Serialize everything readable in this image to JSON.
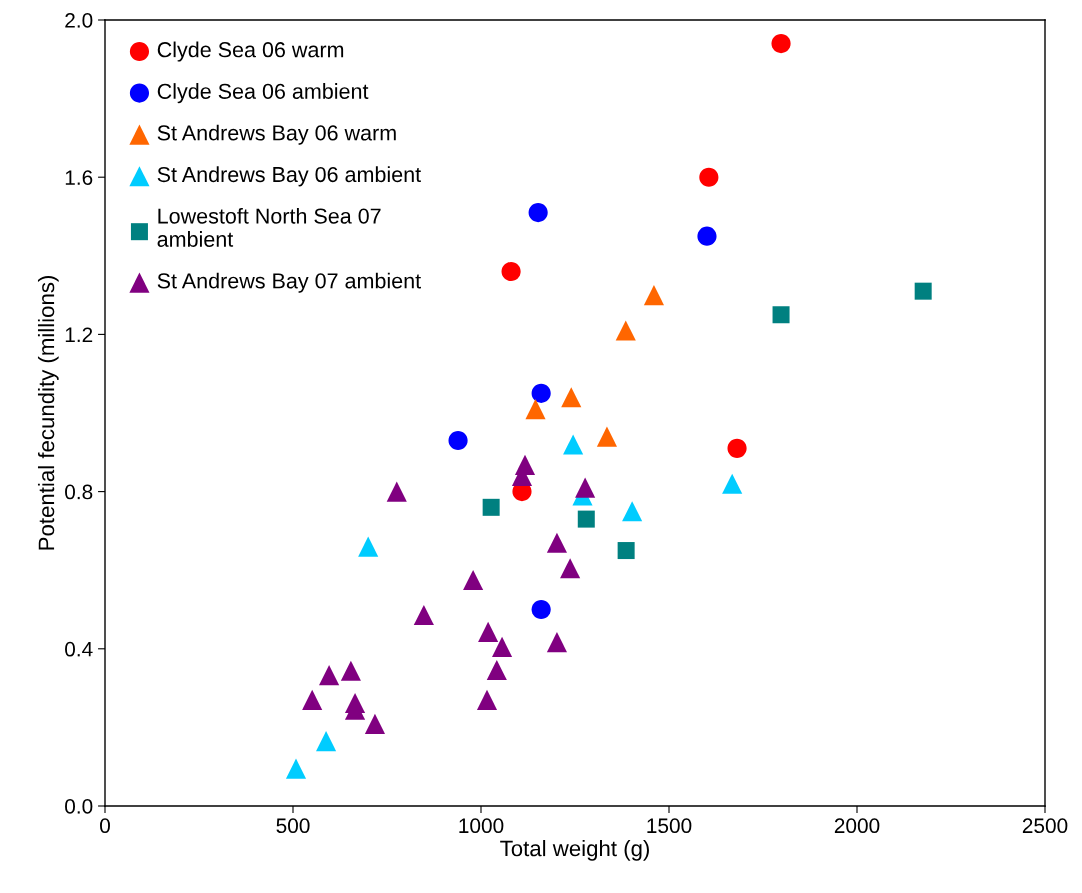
{
  "chart_data": {
    "type": "scatter",
    "xlabel": "Total weight (g)",
    "ylabel": "Potential fecundity (millions)",
    "xlim": [
      0,
      2500
    ],
    "xticks": [
      0,
      500,
      1000,
      1500,
      2000,
      2500
    ],
    "ylim": [
      0,
      2.0
    ],
    "yticks": [
      {
        "value": 0,
        "label": "0.0"
      },
      0.4,
      0.8,
      1.2,
      1.6,
      {
        "value": 2.0,
        "label": "2.0"
      }
    ],
    "grid": false,
    "legend": "top left",
    "series": [
      {
        "name": "Clyde Sea 06 warm",
        "color": "#ff0000",
        "marker": "circle",
        "x": [
          1080,
          1109,
          1798,
          1606,
          1681
        ],
        "values": [
          1.36,
          0.8,
          1.94,
          1.6,
          0.91
        ]
      },
      {
        "name": "Clyde Sea 06 ambient",
        "color": "#0000ff",
        "marker": "circle",
        "x": [
          1152,
          1601,
          1160,
          939,
          1160
        ],
        "values": [
          1.51,
          1.45,
          1.05,
          0.93,
          0.5
        ]
      },
      {
        "name": "St Andrews Bay 06 warm",
        "color": "#ff6600",
        "marker": "triangle",
        "x": [
          1460,
          1385,
          1145,
          1240,
          1335
        ],
        "values": [
          1.3,
          1.21,
          1.01,
          1.04,
          0.94
        ]
      },
      {
        "name": "St Andrews Bay 06 ambient",
        "color": "#00ccff",
        "marker": "triangle",
        "x": [
          1245,
          1270,
          1402,
          1668,
          700,
          588,
          508
        ],
        "values": [
          0.92,
          0.79,
          0.75,
          0.82,
          0.66,
          0.165,
          0.095
        ]
      },
      {
        "name": "Lowestoft North Sea 07\nambient",
        "color": "#008080",
        "marker": "square",
        "x": [
          1027,
          1280,
          1386,
          1798,
          2176
        ],
        "values": [
          0.76,
          0.73,
          0.65,
          1.25,
          1.31
        ]
      },
      {
        "name": "St Andrews Bay 07 ambient",
        "color": "#800080",
        "marker": "triangle",
        "x": [
          1117,
          1109,
          1277,
          776,
          1202,
          1237,
          979,
          848,
          1019,
          1056,
          1202,
          1042,
          596,
          654,
          551,
          665,
          665,
          1016,
          718
        ],
        "values": [
          0.868,
          0.84,
          0.81,
          0.8,
          0.67,
          0.605,
          0.575,
          0.486,
          0.443,
          0.405,
          0.417,
          0.346,
          0.333,
          0.344,
          0.27,
          0.262,
          0.245,
          0.27,
          0.209
        ]
      }
    ]
  }
}
